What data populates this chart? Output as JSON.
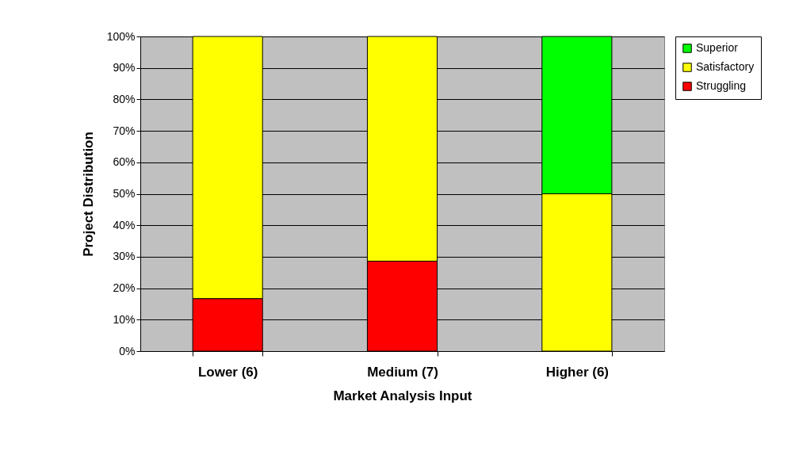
{
  "chart_data": {
    "type": "bar",
    "xlabel": "Market Analysis Input",
    "ylabel": "Project Distribution",
    "categories": [
      "Lower (6)",
      "Medium (7)",
      "Higher (6)"
    ],
    "stacked": true,
    "series": [
      {
        "name": "Struggling",
        "color": "#ff0000",
        "values": [
          16.7,
          28.6,
          null
        ]
      },
      {
        "name": "Satisfactory",
        "color": "#ffff00",
        "values": [
          83.3,
          71.4,
          50
        ]
      },
      {
        "name": "Superior",
        "color": "#00ff00",
        "values": [
          null,
          null,
          50
        ]
      }
    ],
    "ylim": [
      0,
      100
    ],
    "yticks": [
      {
        "value": 0,
        "label": "0%"
      },
      {
        "value": 10,
        "label": "10%"
      },
      {
        "value": 20,
        "label": "20%"
      },
      {
        "value": 30,
        "label": "30%"
      },
      {
        "value": 40,
        "label": "40%"
      },
      {
        "value": 50,
        "label": "50%"
      },
      {
        "value": 60,
        "label": "60%"
      },
      {
        "value": 70,
        "label": "70%"
      },
      {
        "value": 80,
        "label": "80%"
      },
      {
        "value": 90,
        "label": "90%"
      },
      {
        "value": 100,
        "label": "100%"
      }
    ],
    "grid": "y",
    "legend": "right"
  }
}
